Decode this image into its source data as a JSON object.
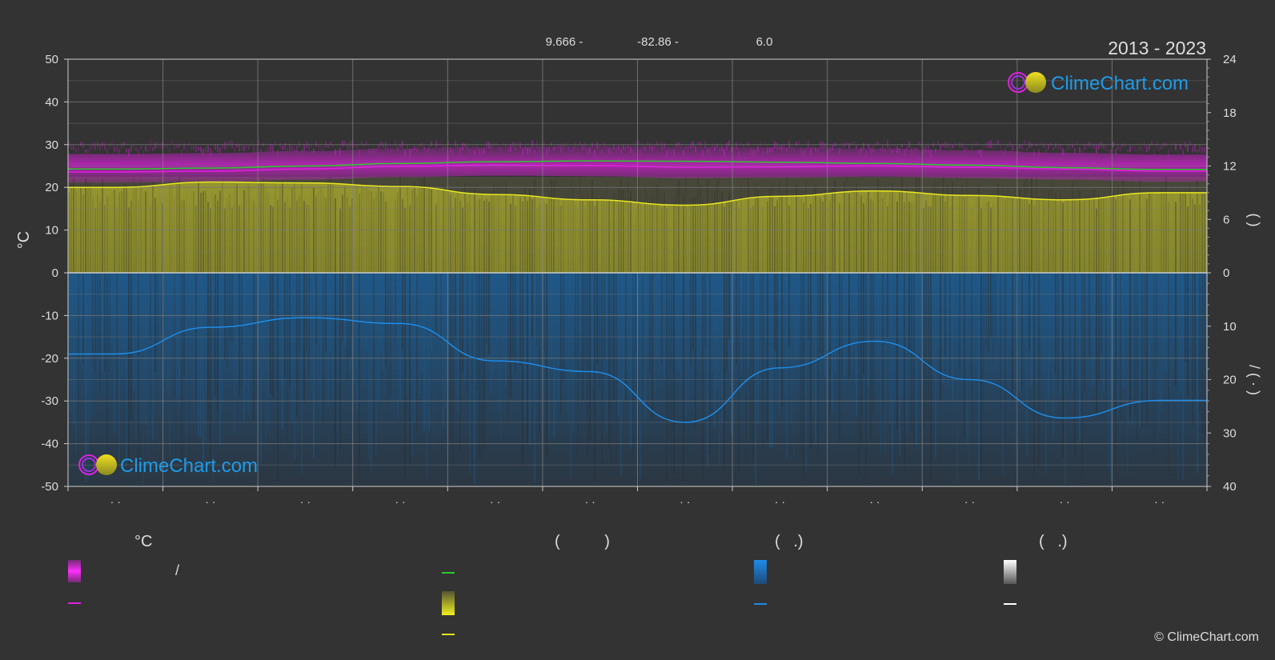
{
  "header": {
    "lat": "9.666 -",
    "lon": "-82.86 -",
    "elev": "6.0",
    "years": "2013 - 2023"
  },
  "logo_text": "ClimeChart.com",
  "copyright": "© ClimeChart.com",
  "colors": {
    "background": "#333333",
    "grid": "#666666",
    "magenta": "#e020e0",
    "green": "#2ec82e",
    "yellow": "#e8e820",
    "sun_fill": "#8c8c2e",
    "rain_fill": "#1e5a8c",
    "blue": "#1e8ce8",
    "white": "#ffffff",
    "logo_blue": "#1e9be8"
  },
  "chart_data": {
    "type": "line",
    "xlabel": "",
    "ylabel": "°C",
    "ylim": [
      -50,
      50
    ],
    "x_tick_labels": [
      "· ·",
      "· ·",
      "· ·",
      "· ·",
      "· ·",
      "· ·",
      "· ·",
      "· ·",
      "· ·",
      "· ·",
      "· ·",
      "· ·"
    ],
    "y_left_ticks": [
      50,
      40,
      30,
      20,
      10,
      0,
      -10,
      -20,
      -30,
      -40,
      -50
    ],
    "y_right_top_ticks": [
      24,
      18,
      12,
      6,
      0
    ],
    "y_right_bottom_ticks": [
      10,
      20,
      30,
      40
    ],
    "y_right_top_label": "(   )",
    "y_right_bottom_label": "/   (   ·   )",
    "right_top_range": [
      0,
      24
    ],
    "right_bottom_range": [
      0,
      40
    ],
    "series": [
      {
        "axis": "left",
        "values": [
          24.3,
          24.5,
          25.0,
          25.6,
          26.0,
          26.2,
          26.1,
          25.9,
          25.6,
          25.2,
          24.6,
          24.2
        ]
      },
      {
        "axis": "left",
        "values": [
          23.6,
          23.8,
          24.3,
          24.9,
          25.2,
          25.1,
          24.7,
          24.8,
          25.0,
          24.7,
          24.3,
          23.8
        ]
      },
      {
        "axis": "right_top",
        "values": [
          9.6,
          10.2,
          10.1,
          9.7,
          8.8,
          8.2,
          7.6,
          8.6,
          9.2,
          8.7,
          8.2,
          9.0
        ]
      },
      {
        "axis": "right_bottom",
        "values": [
          15.2,
          10.2,
          8.4,
          9.5,
          16.5,
          18.5,
          28.0,
          17.8,
          12.8,
          20.0,
          27.2,
          23.9
        ]
      }
    ]
  },
  "legend": {
    "col1_head": "°C",
    "col2_head": "(          )",
    "col3_head": "(   .)",
    "col4_head": "(   .)",
    "col1_row1_text": "/"
  }
}
